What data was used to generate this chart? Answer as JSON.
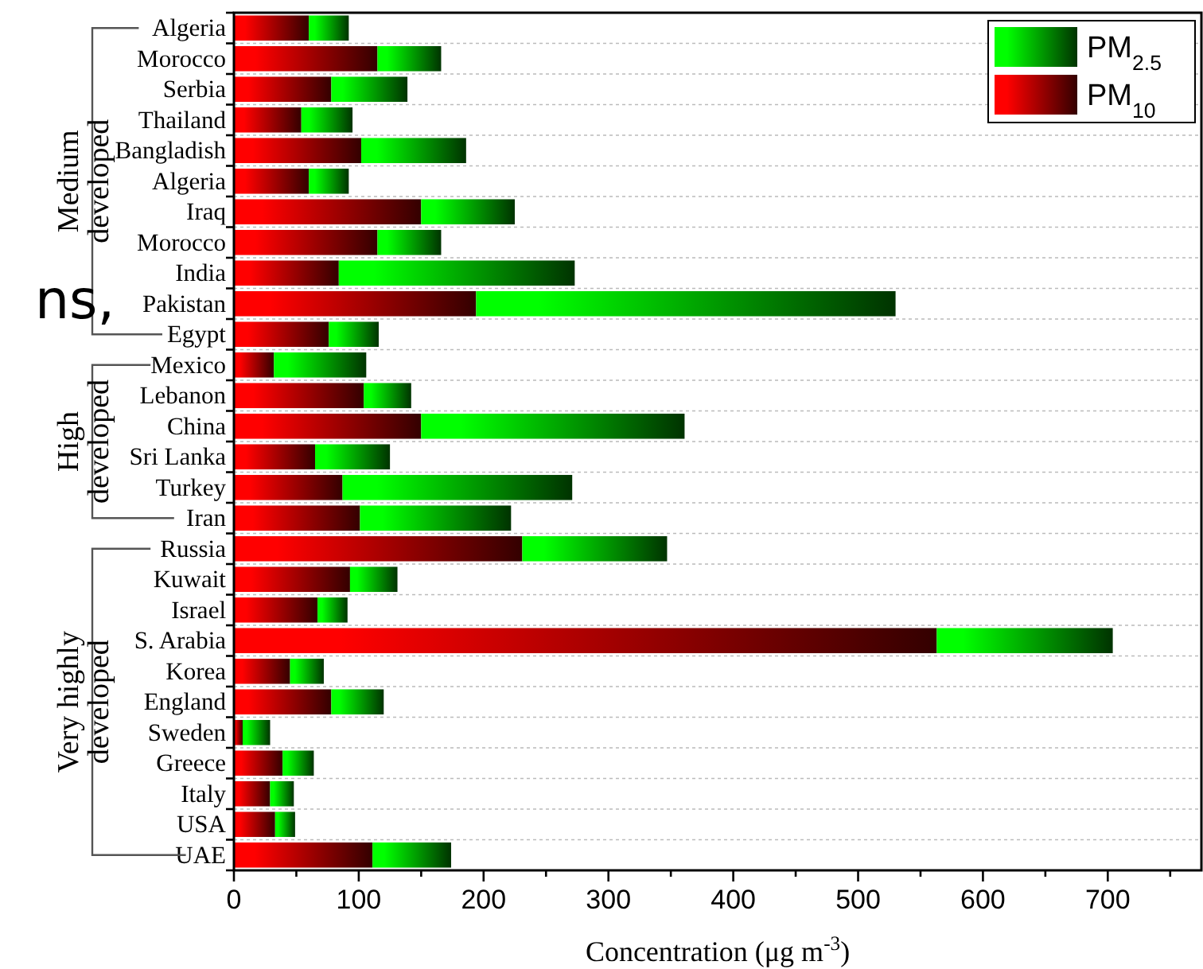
{
  "chart_data": {
    "type": "bar",
    "orientation": "horizontal",
    "stacked": true,
    "xlabel": "Concentration (μg m$^{-3}$)",
    "categories": [
      "Algeria",
      "Morocco",
      "Serbia",
      "Thailand",
      "Bangladish",
      "Algeria",
      "Iraq",
      "Morocco",
      "India",
      "Pakistan",
      "Egypt",
      "Mexico",
      "Lebanon",
      "China",
      "Sri Lanka",
      "Turkey",
      "Iran",
      "Russia",
      "Kuwait",
      "Israel",
      "S. Arabia",
      "Korea",
      "England",
      "Sweden",
      "Greece",
      "Italy",
      "USA",
      "UAE"
    ],
    "series": [
      {
        "name": "PM$_{10}$",
        "color": "#ff0000",
        "values": [
          60,
          115,
          78,
          54,
          102,
          60,
          150,
          115,
          84,
          194,
          76,
          32,
          104,
          150,
          65,
          87,
          101,
          231,
          93,
          67,
          563,
          45,
          78,
          7,
          39,
          29,
          33,
          111
        ]
      },
      {
        "name": "PM$_{2.5}$",
        "color": "#00ff00",
        "values": [
          32,
          51,
          61,
          41,
          84,
          32,
          75,
          51,
          189,
          336,
          40,
          74,
          38,
          211,
          60,
          184,
          121,
          116,
          38,
          24,
          141,
          27,
          42,
          22,
          25,
          19,
          16,
          63
        ]
      }
    ],
    "xlim": [
      0,
      775
    ],
    "xticks": [
      0,
      {
        "value": 50,
        "label": null
      },
      100,
      {
        "value": 150,
        "label": null
      },
      200,
      {
        "value": 250,
        "label": null
      },
      300,
      {
        "value": 350,
        "label": null
      },
      400,
      {
        "value": 450,
        "label": null
      },
      500,
      {
        "value": 550,
        "label": null
      },
      600,
      {
        "value": 650,
        "label": null
      },
      700,
      {
        "value": 750,
        "label": null
      }
    ],
    "grid": "y",
    "legend": "top right",
    "annotations": [
      "Medium developed",
      "High developed",
      "Very highly developed",
      "ns,"
    ]
  }
}
